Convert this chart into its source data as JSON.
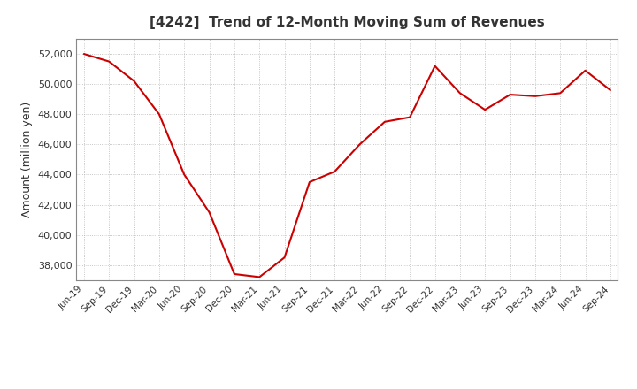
{
  "title": "[4242]  Trend of 12-Month Moving Sum of Revenues",
  "ylabel": "Amount (million yen)",
  "line_color": "#cc0000",
  "background_color": "#ffffff",
  "plot_bg_color": "#ffffff",
  "grid_color": "#999999",
  "title_color": "#333333",
  "ylim": [
    37000,
    53000
  ],
  "yticks": [
    38000,
    40000,
    42000,
    44000,
    46000,
    48000,
    50000,
    52000
  ],
  "x_labels": [
    "Jun-19",
    "Sep-19",
    "Dec-19",
    "Mar-20",
    "Jun-20",
    "Sep-20",
    "Dec-20",
    "Mar-21",
    "Jun-21",
    "Sep-21",
    "Dec-21",
    "Mar-22",
    "Jun-22",
    "Sep-22",
    "Dec-22",
    "Mar-23",
    "Jun-23",
    "Sep-23",
    "Dec-23",
    "Mar-24",
    "Jun-24",
    "Sep-24"
  ],
  "values": [
    52000,
    51500,
    50200,
    48000,
    44000,
    41500,
    37400,
    37200,
    38500,
    43500,
    44200,
    46000,
    47500,
    47800,
    51200,
    49400,
    48300,
    49300,
    49200,
    49400,
    50900,
    49600
  ]
}
